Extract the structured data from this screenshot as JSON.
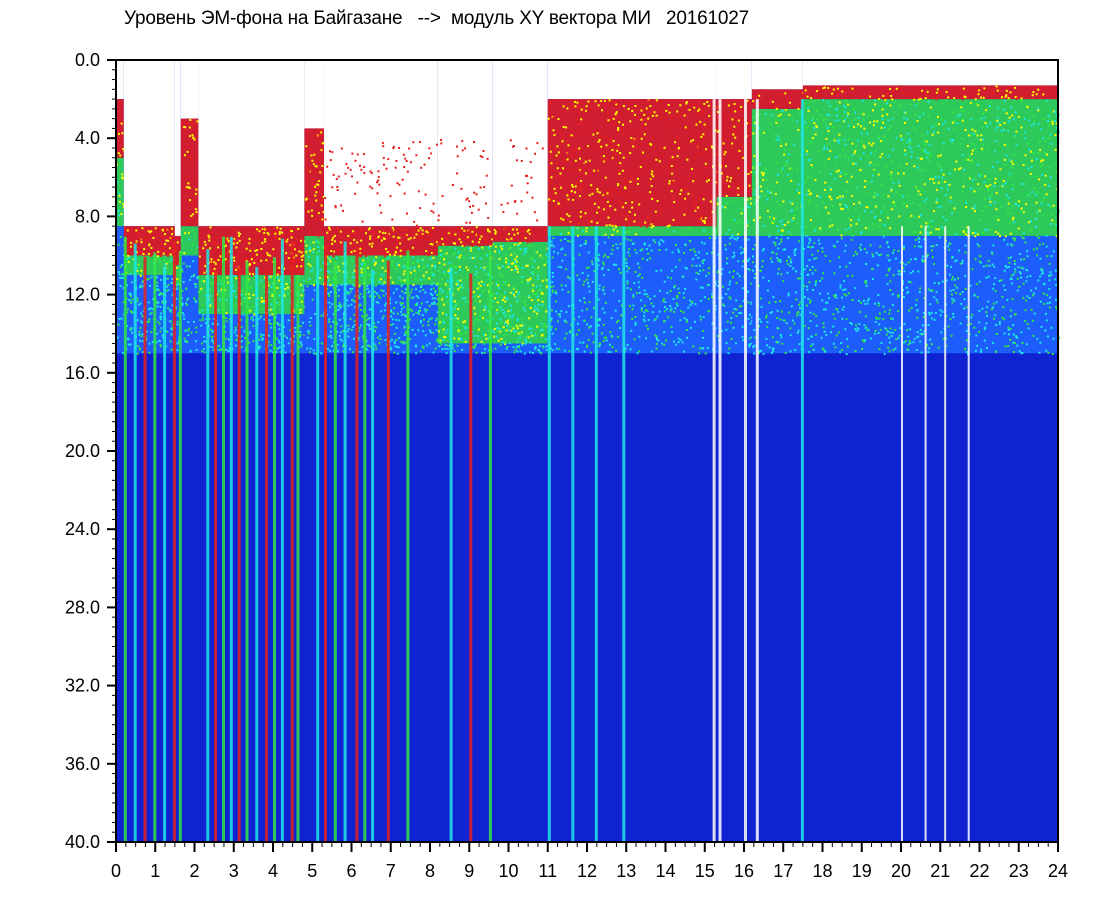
{
  "chart_data": {
    "type": "heatmap",
    "title": "Уровень ЭМ-фона на Байгазане   -->  модуль XY вектора МИ   20161027",
    "xlabel": "",
    "ylabel": "",
    "xlim": [
      0,
      24
    ],
    "ylim": [
      0,
      40
    ],
    "y_inverted": true,
    "x_ticks": [
      "0",
      "1",
      "2",
      "3",
      "4",
      "5",
      "6",
      "7",
      "8",
      "9",
      "10",
      "11",
      "12",
      "13",
      "14",
      "15",
      "16",
      "17",
      "18",
      "19",
      "20",
      "21",
      "22",
      "23",
      "24"
    ],
    "y_ticks": [
      "0.0",
      "4.0",
      "8.0",
      "12.0",
      "16.0",
      "20.0",
      "24.0",
      "28.0",
      "32.0",
      "36.0",
      "40.0"
    ],
    "grid": false,
    "colormap": [
      "#1428d8",
      "#1e64ff",
      "#1ee6e6",
      "#32e646",
      "#ffff00",
      "#e61e1e"
    ],
    "background_level_color": "#0f23d2",
    "time_segments": [
      {
        "t0": 0.0,
        "t1": 0.2,
        "top": 2.0,
        "red_to": 5.0,
        "green_to": 8.5,
        "cyan_to": 15.0
      },
      {
        "t0": 0.2,
        "t1": 1.5,
        "top": 8.5,
        "red_to": 10.0,
        "green_to": 11.0,
        "cyan_to": 15.0
      },
      {
        "t0": 1.5,
        "t1": 1.65,
        "top": 9.0,
        "red_to": 10.5,
        "green_to": 11.5,
        "cyan_to": 15.0
      },
      {
        "t0": 1.65,
        "t1": 2.1,
        "top": 3.0,
        "red_to": 8.5,
        "green_to": 10.0,
        "cyan_to": 15.0
      },
      {
        "t0": 2.1,
        "t1": 4.8,
        "top": 8.5,
        "red_to": 11.0,
        "green_to": 13.0,
        "cyan_to": 15.0
      },
      {
        "t0": 4.8,
        "t1": 5.3,
        "top": 3.5,
        "red_to": 9.0,
        "green_to": 11.5,
        "cyan_to": 15.0
      },
      {
        "t0": 5.3,
        "t1": 8.2,
        "top": 8.5,
        "red_to": 10.0,
        "green_to": 11.5,
        "cyan_to": 15.0
      },
      {
        "t0": 8.2,
        "t1": 9.6,
        "top": 8.5,
        "red_to": 9.5,
        "green_to": 14.5,
        "cyan_to": 15.0
      },
      {
        "t0": 9.6,
        "t1": 11.0,
        "top": 8.5,
        "red_to": 9.3,
        "green_to": 14.5,
        "cyan_to": 15.0
      },
      {
        "t0": 11.0,
        "t1": 15.3,
        "top": 2.0,
        "red_to": 8.5,
        "green_to": 9.0,
        "cyan_to": 15.0
      },
      {
        "t0": 15.3,
        "t1": 16.2,
        "top": 2.0,
        "red_to": 7.0,
        "green_to": 9.0,
        "cyan_to": 15.0
      },
      {
        "t0": 16.2,
        "t1": 17.5,
        "top": 1.5,
        "red_to": 2.5,
        "green_to": 9.0,
        "cyan_to": 15.0
      },
      {
        "t0": 17.5,
        "t1": 24.0,
        "top": 1.3,
        "red_to": 2.0,
        "green_to": 9.0,
        "cyan_to": 15.0
      }
    ]
  }
}
